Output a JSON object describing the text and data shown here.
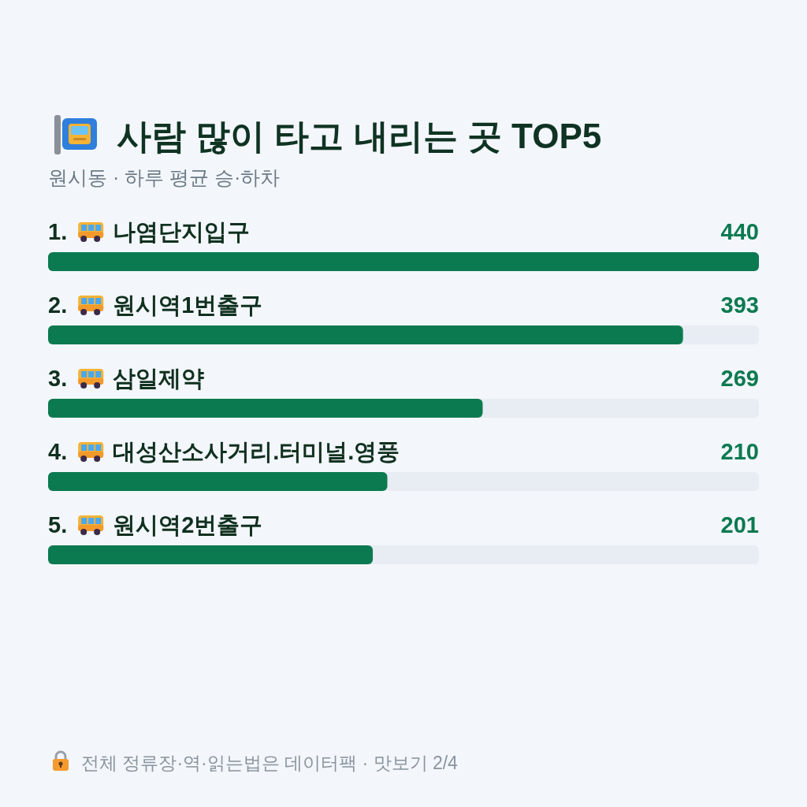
{
  "chart_data": {
    "type": "bar",
    "orientation": "horizontal",
    "title": "사람 많이 타고 내리는 곳 TOP5",
    "subtitle": "원시동 · 하루 평균 승·하차",
    "categories": [
      "1. 나염단지입구",
      "2. 원시역1번출구",
      "3. 삼일제약",
      "4. 대성산소사거리.터미널.영풍",
      "5. 원시역2번출구"
    ],
    "values": [
      440,
      393,
      269,
      210,
      201
    ],
    "color": "#0b7a50",
    "xlim": [
      0,
      440
    ],
    "data_labels": true,
    "annotations": [
      "전체 정류장·역·읽는법은 데이터팩 · 맛보기 2/4"
    ]
  }
}
